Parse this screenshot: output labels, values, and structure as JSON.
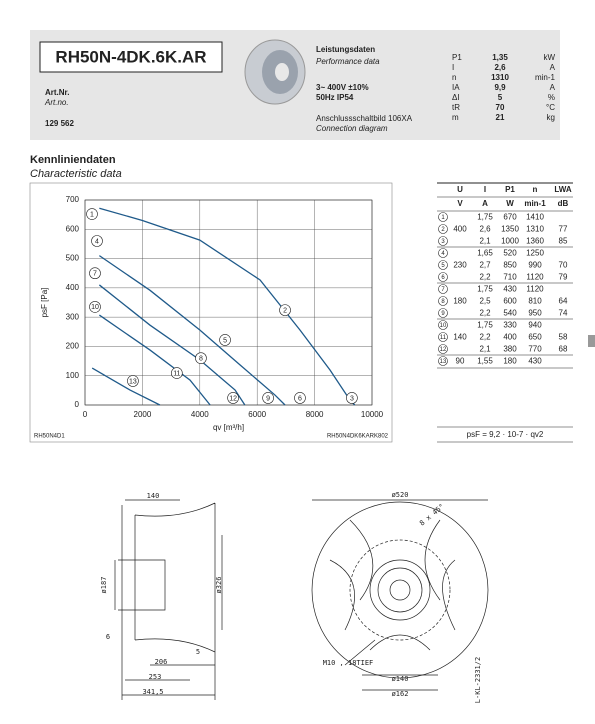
{
  "header": {
    "product": "RH50N-4DK.6K.AR",
    "art_label": "Art.Nr.",
    "art_label_en": "Art.no.",
    "art_no": "129 562",
    "perf_title": "Leistungsdaten",
    "perf_title_en": "Performance data",
    "voltage": "3~ 400V ±10%",
    "freq": "50Hz IP54",
    "connection": "Anschlussschaltbild 106XA",
    "connection_en": "Connection diagram",
    "specs": [
      [
        "P1",
        "1,35",
        "kW"
      ],
      [
        "I",
        "2,6",
        "A"
      ],
      [
        "n",
        "1310",
        "min-1"
      ],
      [
        "IA",
        "9,9",
        "A"
      ],
      [
        "ΔI",
        "5",
        "%"
      ],
      [
        "tR",
        "70",
        "°C"
      ],
      [
        "m",
        "21",
        "kg"
      ]
    ]
  },
  "section": {
    "title": "Kennliniendaten",
    "subtitle": "Characteristic data"
  },
  "chart_data": {
    "type": "line",
    "ylabel": "psF [Pa]",
    "xlabel": "qv [m³/h]",
    "xlim": [
      0,
      10000
    ],
    "ylim": [
      0,
      700
    ],
    "xticks": [
      0,
      2000,
      4000,
      6000,
      8000,
      10000
    ],
    "yticks": [
      0,
      100,
      200,
      300,
      400,
      500,
      600,
      700
    ],
    "grid": true,
    "color": "#1f5a8a",
    "series": [
      {
        "x": [
          500,
          2000,
          4000,
          6100,
          7490,
          8540,
          9230,
          9400
        ],
        "values": [
          672,
          630,
          563,
          427,
          256,
          119,
          17,
          0
        ]
      },
      {
        "x": [
          500,
          2260,
          4000,
          5400,
          6620,
          6970
        ],
        "values": [
          510,
          392,
          256,
          137,
          34,
          0
        ]
      },
      {
        "x": [
          500,
          2260,
          4000,
          5230,
          5570
        ],
        "values": [
          410,
          273,
          154,
          51,
          0
        ]
      },
      {
        "x": [
          500,
          2260,
          3660,
          4360
        ],
        "values": [
          307,
          188,
          85,
          0
        ]
      },
      {
        "x": [
          250,
          1570,
          2610
        ],
        "values": [
          126,
          51,
          0
        ]
      }
    ],
    "annotations": [
      {
        "label": "1",
        "x": 244,
        "y": 652
      },
      {
        "label": "2",
        "x": 6970,
        "y": 324
      },
      {
        "label": "3",
        "x": 9300,
        "y": 24
      },
      {
        "label": "4",
        "x": 418,
        "y": 560
      },
      {
        "label": "5",
        "x": 4880,
        "y": 222
      },
      {
        "label": "6",
        "x": 7490,
        "y": 24
      },
      {
        "label": "7",
        "x": 348,
        "y": 450
      },
      {
        "label": "8",
        "x": 4040,
        "y": 160
      },
      {
        "label": "9",
        "x": 6380,
        "y": 24
      },
      {
        "label": "10",
        "x": 348,
        "y": 335
      },
      {
        "label": "11",
        "x": 3200,
        "y": 109
      },
      {
        "label": "12",
        "x": 5160,
        "y": 24
      },
      {
        "label": "13",
        "x": 1670,
        "y": 82
      }
    ],
    "footer_left": "RH50N4D1",
    "footer_right": "RH50N4DK6KARK802"
  },
  "table": {
    "header": [
      "U",
      "I",
      "P1",
      "n",
      "LWA"
    ],
    "units": [
      "V",
      "A",
      "W",
      "min-1",
      "dB"
    ],
    "rows": [
      [
        "1",
        null,
        "1,75",
        "670",
        "1410",
        null
      ],
      [
        "2",
        "400",
        "2,6",
        "1350",
        "1310",
        "77"
      ],
      [
        "3",
        null,
        "2,1",
        "1000",
        "1360",
        "85"
      ],
      [
        "4",
        null,
        "1,65",
        "520",
        "1250",
        null
      ],
      [
        "5",
        "230",
        "2,7",
        "850",
        "990",
        "70"
      ],
      [
        "6",
        null,
        "2,2",
        "710",
        "1120",
        "79"
      ],
      [
        "7",
        null,
        "1,75",
        "430",
        "1120",
        null
      ],
      [
        "8",
        "180",
        "2,5",
        "600",
        "810",
        "64"
      ],
      [
        "9",
        null,
        "2,2",
        "540",
        "950",
        "74"
      ],
      [
        "10",
        null,
        "1,75",
        "330",
        "940",
        null
      ],
      [
        "11",
        "140",
        "2,2",
        "400",
        "650",
        "58"
      ],
      [
        "12",
        null,
        "2,1",
        "380",
        "770",
        "68"
      ],
      [
        "13",
        "90",
        "1,55",
        "180",
        "430",
        null
      ]
    ],
    "formula": "psF = 9,2 · 10-7 · qv2"
  },
  "drawing": {
    "labels": [
      "140",
      "ø187",
      "ø326",
      "6",
      "5",
      "206",
      "253",
      "341,5",
      "ø520",
      "8 x 45°",
      "M10 , 18TIEF",
      "ø140",
      "ø162",
      "L-KL-2331/2"
    ]
  }
}
